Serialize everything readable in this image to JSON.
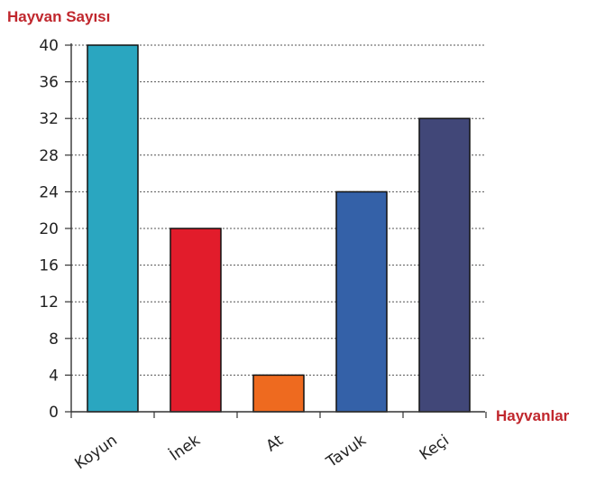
{
  "chart_data": {
    "type": "bar",
    "ylabel": "Hayvan Sayısı",
    "xlabel": "Hayvanlar",
    "categories": [
      "Koyun",
      "İnek",
      "At",
      "Tavuk",
      "Keçi"
    ],
    "values": [
      40,
      20,
      4,
      24,
      32
    ],
    "colors": [
      "#2aa6c0",
      "#e21c2b",
      "#ee6a1f",
      "#3461a8",
      "#414778"
    ],
    "ylim": [
      0,
      40
    ],
    "yticks": [
      "0",
      "4",
      "8",
      "12",
      "16",
      "20",
      "24",
      "28",
      "32",
      "36",
      "40"
    ],
    "grid": true,
    "title_color": "#c0272d"
  }
}
